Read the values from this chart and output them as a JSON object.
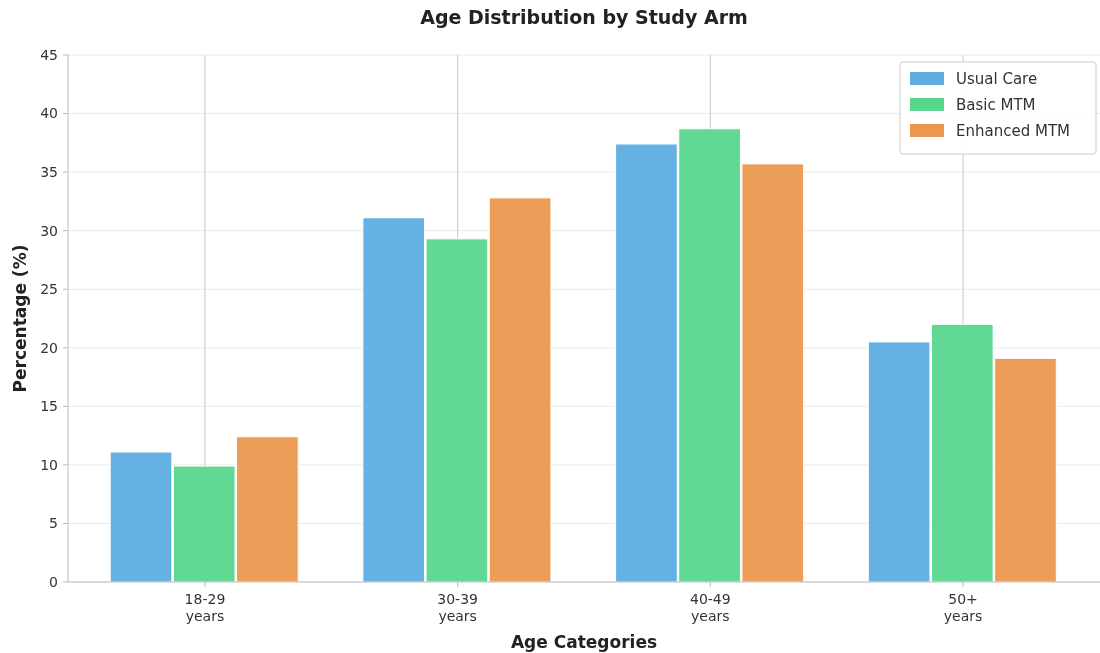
{
  "chart_data": {
    "type": "bar",
    "title": "Age Distribution by Study Arm",
    "xlabel": "Age Categories",
    "ylabel": "Percentage (%)",
    "categories": [
      "18-29 years",
      "30-39 years",
      "40-49 years",
      "50+ years"
    ],
    "series": [
      {
        "name": "Usual Care",
        "color": "#5dade2",
        "values": [
          11.1,
          31.1,
          37.4,
          20.5
        ]
      },
      {
        "name": "Basic MTM",
        "color": "#58d68d",
        "values": [
          9.9,
          29.3,
          38.7,
          22.0
        ]
      },
      {
        "name": "Enhanced MTM",
        "color": "#eb984e",
        "values": [
          12.4,
          32.8,
          35.7,
          19.1
        ]
      }
    ],
    "ylim": [
      0,
      45
    ],
    "yticks": [
      0,
      5,
      10,
      15,
      20,
      25,
      30,
      35,
      40,
      45
    ],
    "grid": true,
    "legend": "top right"
  }
}
